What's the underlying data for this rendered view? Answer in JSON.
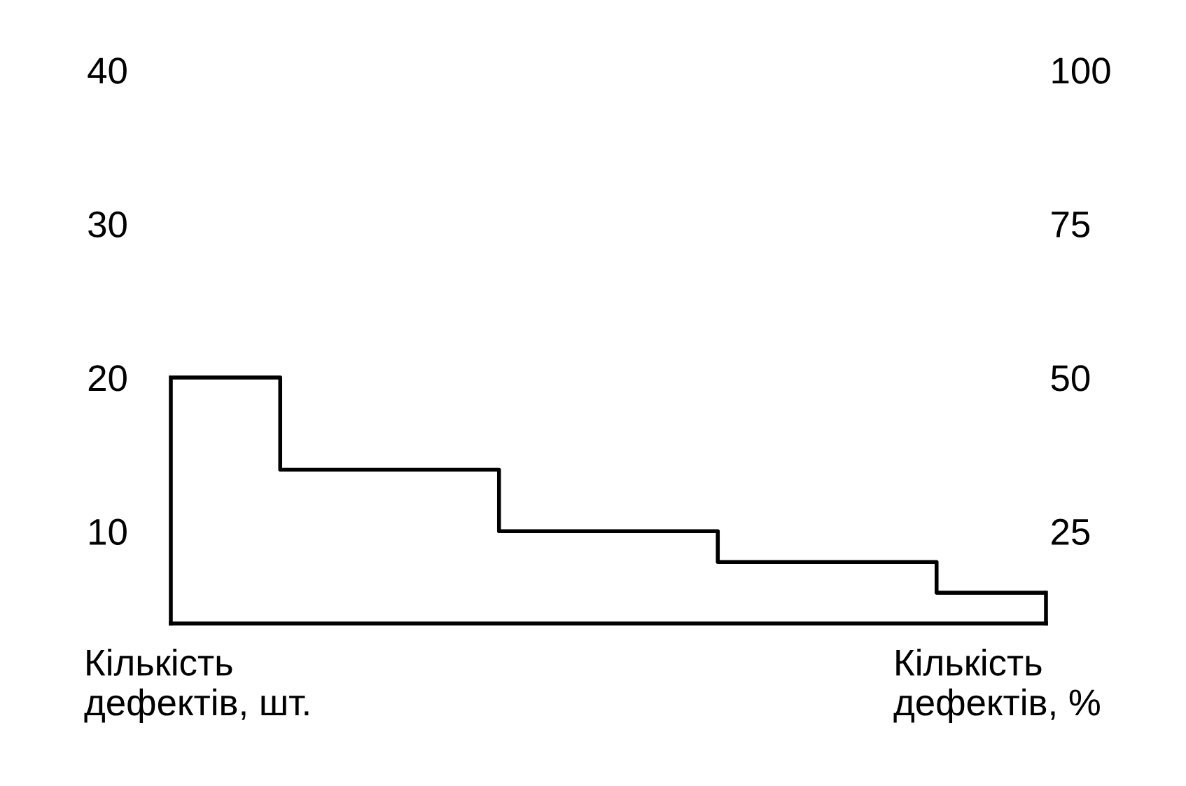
{
  "chart_data": {
    "type": "step",
    "categories": [
      null,
      null,
      null,
      null,
      null
    ],
    "values": [
      20,
      14,
      10,
      8,
      6
    ],
    "color": "#000000",
    "annotations": [
      "Кількість\nдефектів, шт.",
      "Кількість\nдефектів, %"
    ],
    "ylim": [
      4,
      40
    ],
    "yticks": [
      10,
      20,
      30,
      40
    ],
    "y2lim": [
      10,
      100
    ],
    "y2ticks": [
      25,
      50,
      75,
      100
    ],
    "grid": false,
    "legend": false
  }
}
